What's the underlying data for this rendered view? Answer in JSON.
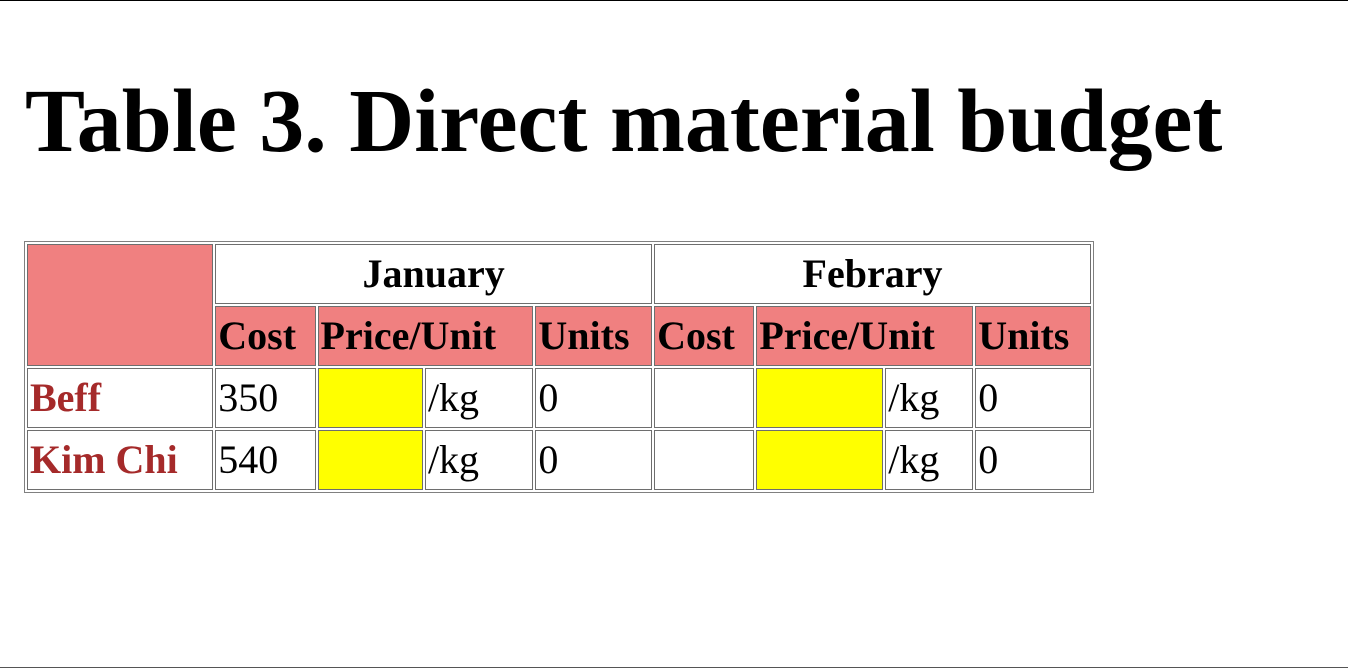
{
  "title": "Table 3. Direct material budget",
  "months": [
    "January",
    "Febrary"
  ],
  "subheaders": {
    "cost": "Cost",
    "price_unit": "Price/Unit",
    "units": "Units"
  },
  "rows": [
    {
      "item": "Beff",
      "january": {
        "cost": "350",
        "price": "",
        "unit": "/kg",
        "units": "0"
      },
      "february": {
        "cost": "",
        "price": "",
        "unit": "/kg",
        "units": "0"
      }
    },
    {
      "item": "Kim Chi",
      "january": {
        "cost": "540",
        "price": "",
        "unit": "/kg",
        "units": "0"
      },
      "february": {
        "cost": "",
        "price": "",
        "unit": "/kg",
        "units": "0"
      }
    }
  ],
  "colors": {
    "header_fill": "#f08080",
    "input_fill": "#ffff00",
    "item_text": "#a52a2a"
  }
}
